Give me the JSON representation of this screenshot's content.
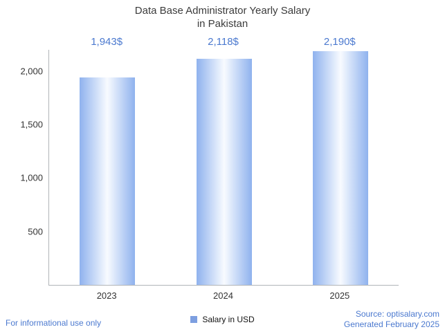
{
  "title": {
    "line1": "Data Base Administrator Yearly Salary",
    "line2": "in Pakistan"
  },
  "chart_data": {
    "type": "bar",
    "title": "Data Base Administrator Yearly Salary in Pakistan",
    "categories": [
      "2023",
      "2024",
      "2025"
    ],
    "values": [
      1943,
      2118,
      2190
    ],
    "value_labels": [
      "1,943$",
      "2,118$",
      "2,190$"
    ],
    "xlabel": "",
    "ylabel": "",
    "ylim": [
      0,
      2200
    ],
    "yticks": [
      500,
      1000,
      1500,
      2000
    ],
    "grid": false,
    "legend": {
      "label": "Salary in USD",
      "position": "bottom"
    },
    "colors": {
      "bar_edge": "#8fb2ee",
      "bar_center": "#f8fbff",
      "annotation_blue": "#4b79cf",
      "axis_line": "#b0b4b8",
      "tick_text": "#333333",
      "title_text": "#3b3b3b",
      "legend_swatch": "#7d9fe0"
    }
  },
  "footer": {
    "left": "For informational use only",
    "source": "Source: optisalary.com",
    "generated": "Generated February 2025"
  }
}
